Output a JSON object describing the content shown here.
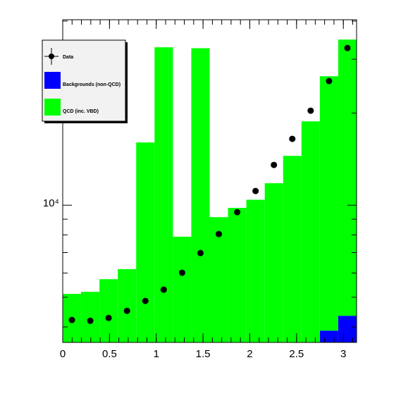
{
  "chart_data": {
    "type": "stacked_histogram",
    "log_y": true,
    "xlim": [
      0,
      3.1416
    ],
    "xticks": [
      0,
      0.5,
      1,
      1.5,
      2,
      2.5,
      3
    ],
    "ylim": [
      3560,
      40400
    ],
    "yticks": [
      {
        "value": 10000,
        "label": "10⁴"
      }
    ],
    "bins": [
      0,
      0.19635,
      0.3927,
      0.58905,
      0.7854,
      0.98175,
      1.1781,
      1.37445,
      1.5708,
      1.76715,
      1.9635,
      2.15985,
      2.3562,
      2.55255,
      2.7489,
      2.94525,
      3.1416
    ],
    "series": [
      {
        "name": "Backgrounds (non-QCD)",
        "color": "#0000ff",
        "values": [
          0,
          0,
          0,
          0,
          0,
          0,
          0,
          0,
          0,
          0,
          0,
          0,
          0,
          0,
          3890,
          4350
        ]
      },
      {
        "name": "QCD (inc. VBD)",
        "color": "#00ff00",
        "values": [
          5130,
          5210,
          5730,
          6180,
          16040,
          32830,
          7890,
          32600,
          9140,
          9800,
          10420,
          11800,
          14500,
          18800,
          22510,
          30450
        ]
      }
    ],
    "points": {
      "name": "Data",
      "color": "#000000",
      "values": [
        4215,
        4190,
        4280,
        4515,
        4865,
        5295,
        6015,
        6975,
        8050,
        9490,
        11130,
        13540,
        16480,
        20370,
        25460,
        32650
      ]
    }
  }
}
